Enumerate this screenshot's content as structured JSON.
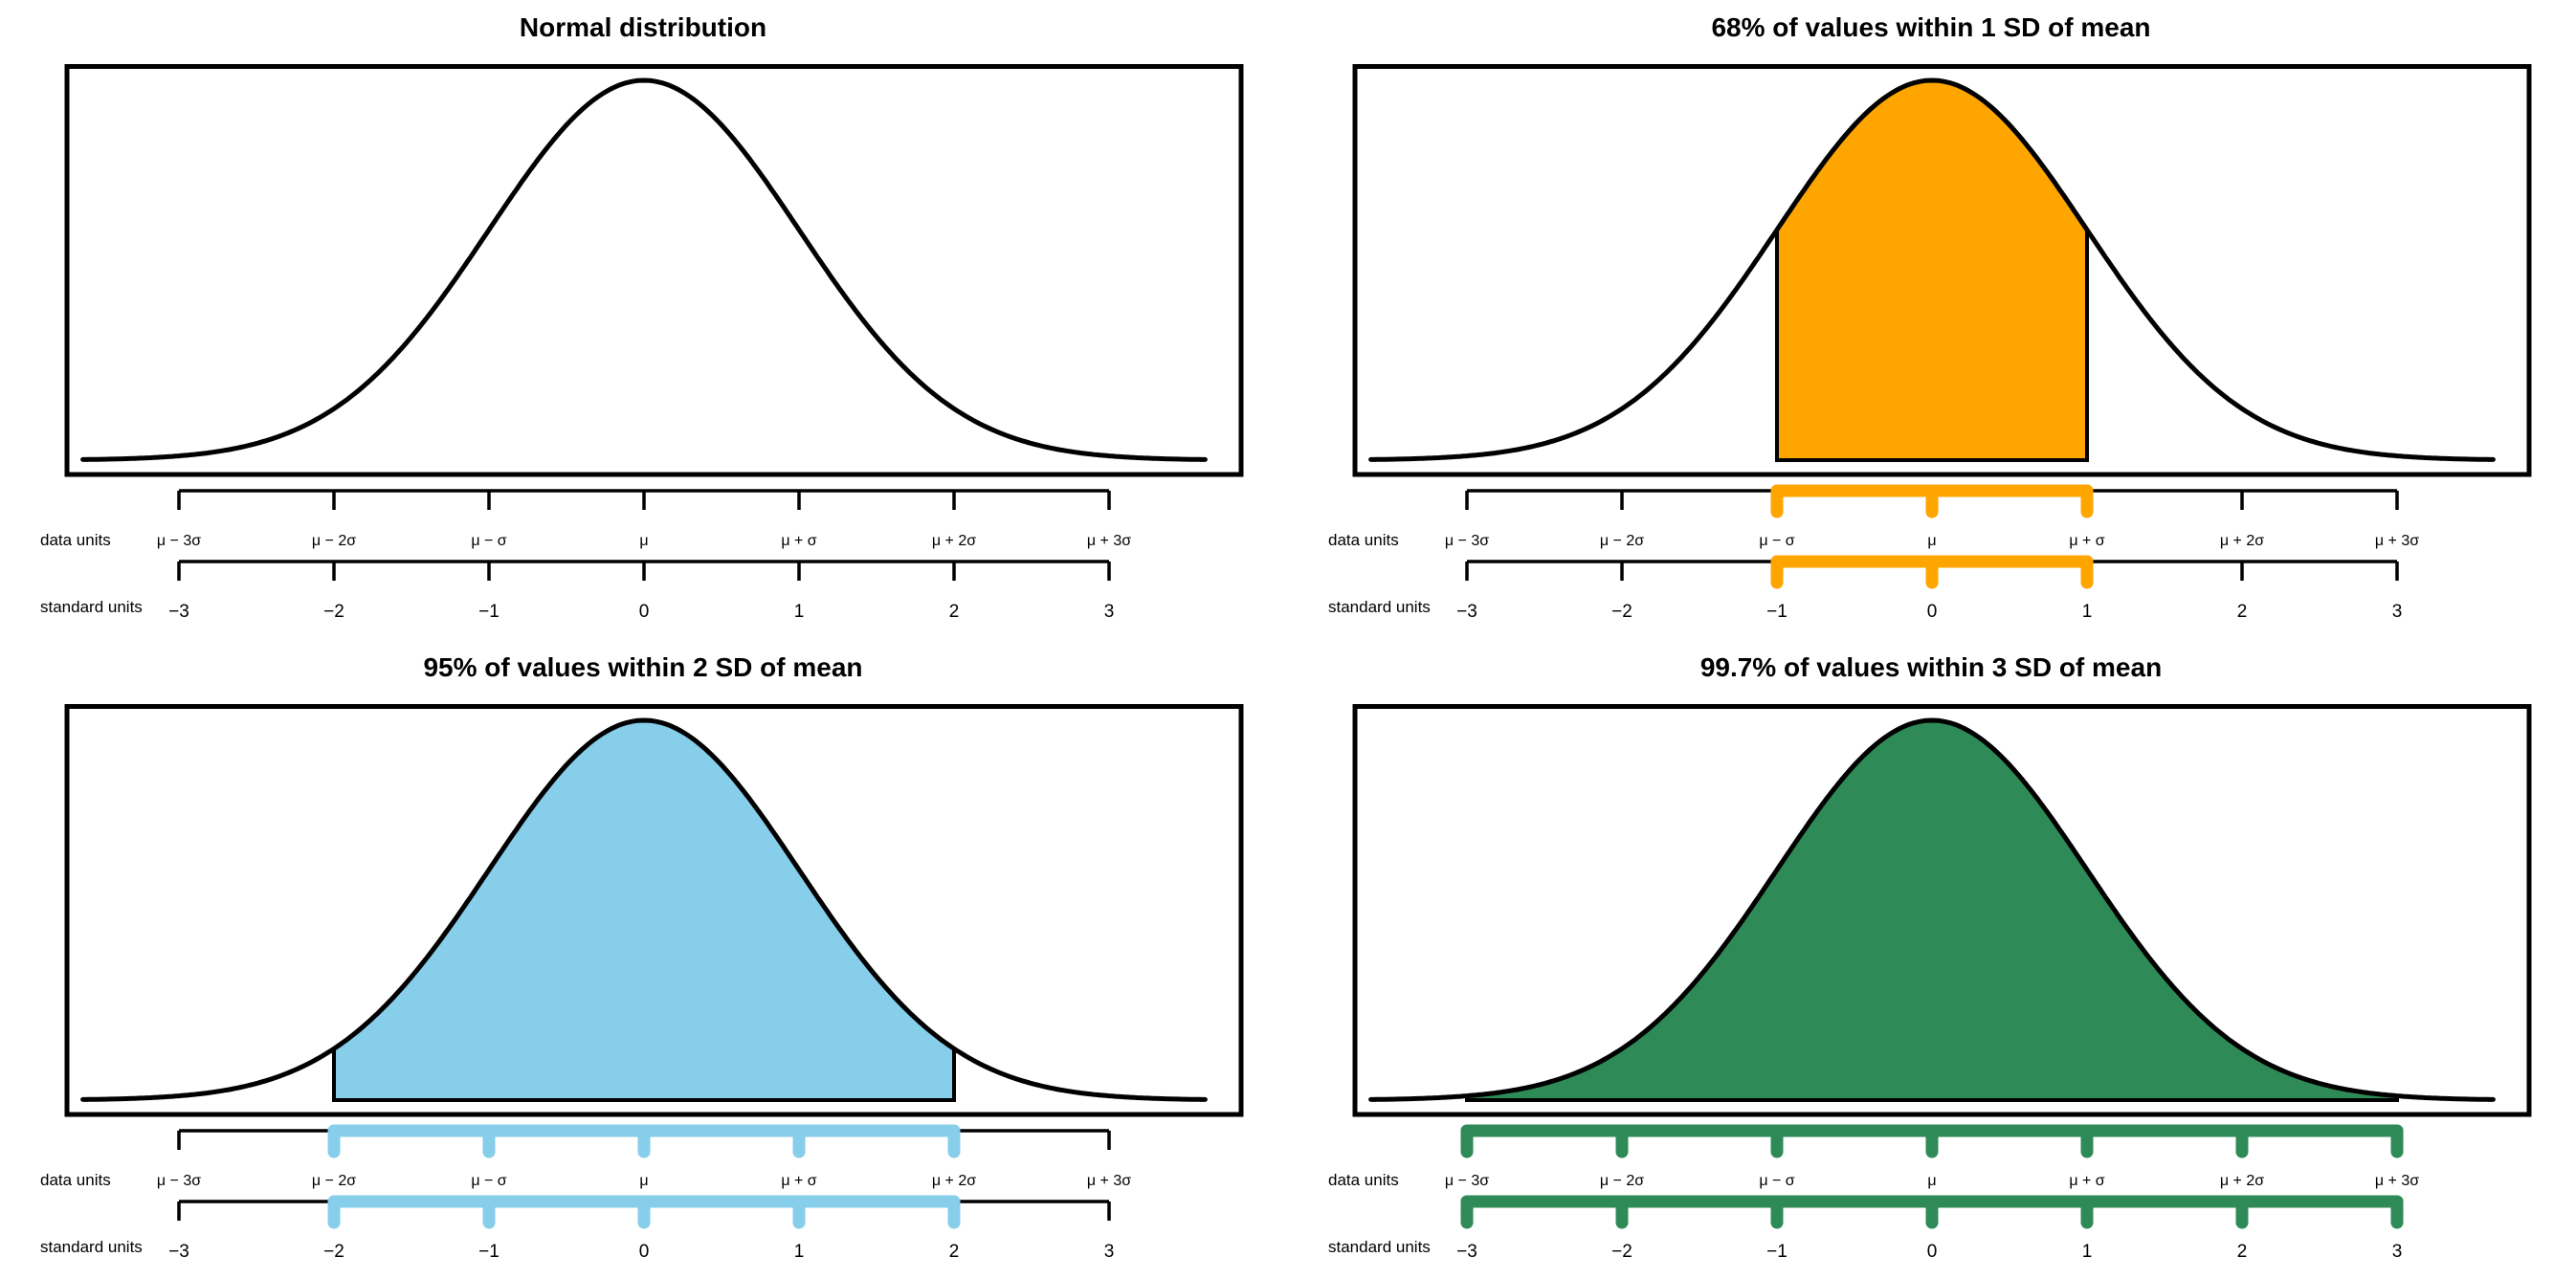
{
  "figure": {
    "background": "#ffffff",
    "curve_color": "#000000",
    "box_color": "#000000",
    "axis_color": "#000000",
    "text_color": "#000000"
  },
  "chart_data": {
    "type": "line",
    "curve": "standard normal density",
    "x_range_sd": [
      -3.62,
      3.62
    ],
    "grid": false,
    "legend": false,
    "panels": [
      {
        "title": "Normal distribution",
        "shaded_percent": null,
        "shaded_interval_sd": null,
        "fill_color": null
      },
      {
        "title": "68% of values within 1 SD of mean",
        "shaded_percent": "68%",
        "shaded_interval_sd": [
          -1,
          1
        ],
        "fill_color": "#FFA500"
      },
      {
        "title": "95% of values within 2 SD of mean",
        "shaded_percent": "95%",
        "shaded_interval_sd": [
          -2,
          2
        ],
        "fill_color": "#87CEEB"
      },
      {
        "title": "99.7% of values within 3 SD of mean",
        "shaded_percent": "99.7%",
        "shaded_interval_sd": [
          -3,
          3
        ],
        "fill_color": "#2E8B57"
      }
    ],
    "axes": [
      {
        "side_label": "data units",
        "ticks": [
          -3,
          -2,
          -1,
          0,
          1,
          2,
          3
        ],
        "tick_labels": [
          "μ − 3σ",
          "μ − 2σ",
          "μ − σ",
          "μ",
          "μ + σ",
          "μ + 2σ",
          "μ + 3σ"
        ]
      },
      {
        "side_label": "standard units",
        "ticks": [
          -3,
          -2,
          -1,
          0,
          1,
          2,
          3
        ],
        "tick_labels": [
          "−3",
          "−2",
          "−1",
          "0",
          "1",
          "2",
          "3"
        ]
      }
    ]
  }
}
